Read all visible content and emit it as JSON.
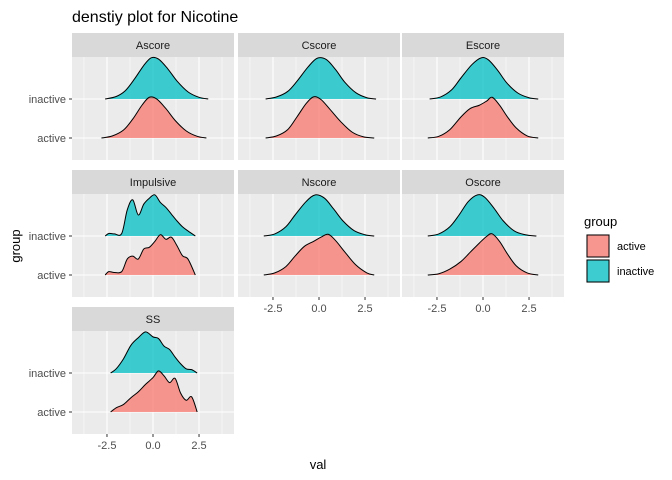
{
  "chart_data": {
    "type": "density-ridgeline",
    "title": "denstiy plot for Nicotine",
    "xlabel": "val",
    "ylabel": "group",
    "xlim": [
      -4.4,
      4.4
    ],
    "x_ticks": [
      -2.5,
      0.0,
      2.5
    ],
    "x_tick_labels": [
      "-2.5",
      "0.0",
      "2.5"
    ],
    "categories": [
      "active",
      "inactive"
    ],
    "grid": true,
    "legend": {
      "title": "group",
      "position": "right",
      "entries": [
        {
          "name": "active",
          "color": "#F8766D"
        },
        {
          "name": "inactive",
          "color": "#00BFC4"
        }
      ]
    },
    "facets": [
      {
        "name": "Ascore",
        "series": [
          {
            "name": "active",
            "x": [
              -2.8,
              -2.2,
              -1.6,
              -1.1,
              -0.6,
              -0.2,
              0.2,
              0.7,
              1.2,
              1.8,
              2.4,
              2.9
            ],
            "y": [
              0.0,
              0.05,
              0.19,
              0.45,
              0.78,
              0.97,
              0.93,
              0.7,
              0.42,
              0.17,
              0.04,
              0.0
            ]
          },
          {
            "name": "inactive",
            "x": [
              -2.6,
              -2.0,
              -1.5,
              -1.0,
              -0.5,
              -0.1,
              0.3,
              0.8,
              1.3,
              1.9,
              2.5,
              3.0
            ],
            "y": [
              0.0,
              0.06,
              0.2,
              0.48,
              0.8,
              0.98,
              0.95,
              0.72,
              0.43,
              0.17,
              0.04,
              0.0
            ]
          }
        ]
      },
      {
        "name": "Cscore",
        "series": [
          {
            "name": "active",
            "x": [
              -2.9,
              -2.3,
              -1.7,
              -1.2,
              -0.7,
              -0.3,
              0.1,
              0.6,
              1.2,
              1.8,
              2.4,
              3.0
            ],
            "y": [
              0.0,
              0.05,
              0.2,
              0.5,
              0.82,
              0.98,
              0.92,
              0.68,
              0.38,
              0.14,
              0.03,
              0.0
            ]
          },
          {
            "name": "inactive",
            "x": [
              -2.9,
              -2.3,
              -1.7,
              -1.2,
              -0.6,
              -0.1,
              0.4,
              0.9,
              1.4,
              2.0,
              2.6,
              3.1
            ],
            "y": [
              0.0,
              0.05,
              0.18,
              0.42,
              0.76,
              0.97,
              0.94,
              0.7,
              0.4,
              0.15,
              0.03,
              0.0
            ]
          }
        ]
      },
      {
        "name": "Escore",
        "series": [
          {
            "name": "active",
            "x": [
              -3.0,
              -2.4,
              -1.8,
              -1.2,
              -0.7,
              -0.2,
              0.2,
              0.5,
              0.9,
              1.3,
              1.8,
              2.4,
              3.0
            ],
            "y": [
              0.0,
              0.04,
              0.2,
              0.5,
              0.7,
              0.78,
              0.88,
              0.97,
              0.78,
              0.52,
              0.24,
              0.05,
              0.0
            ]
          },
          {
            "name": "inactive",
            "x": [
              -2.9,
              -2.3,
              -1.7,
              -1.2,
              -0.6,
              -0.1,
              0.3,
              0.8,
              1.3,
              1.9,
              2.5,
              3.0
            ],
            "y": [
              0.0,
              0.05,
              0.22,
              0.5,
              0.82,
              0.98,
              0.93,
              0.68,
              0.38,
              0.14,
              0.03,
              0.0
            ]
          }
        ]
      },
      {
        "name": "Impulsive",
        "series": [
          {
            "name": "active",
            "x": [
              -2.6,
              -2.4,
              -2.1,
              -1.7,
              -1.4,
              -1.1,
              -0.8,
              -0.5,
              -0.2,
              0.1,
              0.4,
              0.7,
              1.0,
              1.3,
              1.6,
              1.9,
              2.3
            ],
            "y": [
              0.0,
              0.08,
              0.06,
              0.08,
              0.38,
              0.45,
              0.38,
              0.62,
              0.66,
              0.8,
              0.96,
              0.85,
              0.9,
              0.7,
              0.46,
              0.38,
              0.0
            ]
          },
          {
            "name": "inactive",
            "x": [
              -2.6,
              -2.4,
              -2.1,
              -1.7,
              -1.4,
              -1.1,
              -0.8,
              -0.5,
              -0.2,
              0.1,
              0.4,
              0.7,
              1.0,
              1.3,
              1.6,
              1.9,
              2.3
            ],
            "y": [
              0.0,
              0.06,
              0.05,
              0.06,
              0.62,
              0.86,
              0.5,
              0.76,
              0.9,
              0.98,
              0.8,
              0.68,
              0.52,
              0.36,
              0.22,
              0.12,
              0.0
            ]
          }
        ]
      },
      {
        "name": "Nscore",
        "series": [
          {
            "name": "active",
            "x": [
              -3.0,
              -2.4,
              -1.8,
              -1.3,
              -0.8,
              -0.3,
              0.1,
              0.5,
              0.9,
              1.4,
              2.0,
              2.6,
              3.0
            ],
            "y": [
              0.0,
              0.05,
              0.2,
              0.45,
              0.68,
              0.8,
              0.9,
              0.97,
              0.82,
              0.55,
              0.24,
              0.05,
              0.0
            ]
          },
          {
            "name": "inactive",
            "x": [
              -3.0,
              -2.4,
              -1.8,
              -1.3,
              -0.7,
              -0.2,
              0.3,
              0.8,
              1.3,
              1.9,
              2.5,
              3.0
            ],
            "y": [
              0.0,
              0.05,
              0.22,
              0.5,
              0.82,
              0.98,
              0.9,
              0.64,
              0.36,
              0.13,
              0.03,
              0.0
            ]
          }
        ]
      },
      {
        "name": "Oscore",
        "series": [
          {
            "name": "active",
            "x": [
              -3.0,
              -2.4,
              -1.8,
              -1.2,
              -0.7,
              -0.2,
              0.2,
              0.5,
              0.9,
              1.3,
              1.8,
              2.4,
              3.0
            ],
            "y": [
              0.0,
              0.03,
              0.14,
              0.32,
              0.54,
              0.76,
              0.92,
              0.98,
              0.8,
              0.52,
              0.22,
              0.05,
              0.0
            ]
          },
          {
            "name": "inactive",
            "x": [
              -3.0,
              -2.4,
              -1.8,
              -1.3,
              -0.8,
              -0.3,
              0.1,
              0.6,
              1.1,
              1.7,
              2.3,
              2.9
            ],
            "y": [
              0.0,
              0.05,
              0.22,
              0.5,
              0.82,
              0.98,
              0.92,
              0.66,
              0.36,
              0.12,
              0.03,
              0.0
            ]
          }
        ]
      },
      {
        "name": "SS",
        "series": [
          {
            "name": "active",
            "x": [
              -2.3,
              -2.0,
              -1.6,
              -1.2,
              -0.8,
              -0.4,
              0.0,
              0.3,
              0.6,
              0.9,
              1.2,
              1.5,
              1.8,
              2.1,
              2.4
            ],
            "y": [
              0.0,
              0.1,
              0.18,
              0.34,
              0.48,
              0.66,
              0.82,
              0.98,
              0.86,
              0.7,
              0.8,
              0.45,
              0.28,
              0.36,
              0.0
            ]
          },
          {
            "name": "inactive",
            "x": [
              -2.3,
              -2.0,
              -1.6,
              -1.2,
              -0.8,
              -0.4,
              0.0,
              0.3,
              0.6,
              0.9,
              1.2,
              1.5,
              1.8,
              2.1,
              2.4
            ],
            "y": [
              0.0,
              0.1,
              0.34,
              0.66,
              0.84,
              0.98,
              0.86,
              0.82,
              0.64,
              0.56,
              0.38,
              0.22,
              0.1,
              0.08,
              0.0
            ]
          }
        ]
      }
    ]
  }
}
